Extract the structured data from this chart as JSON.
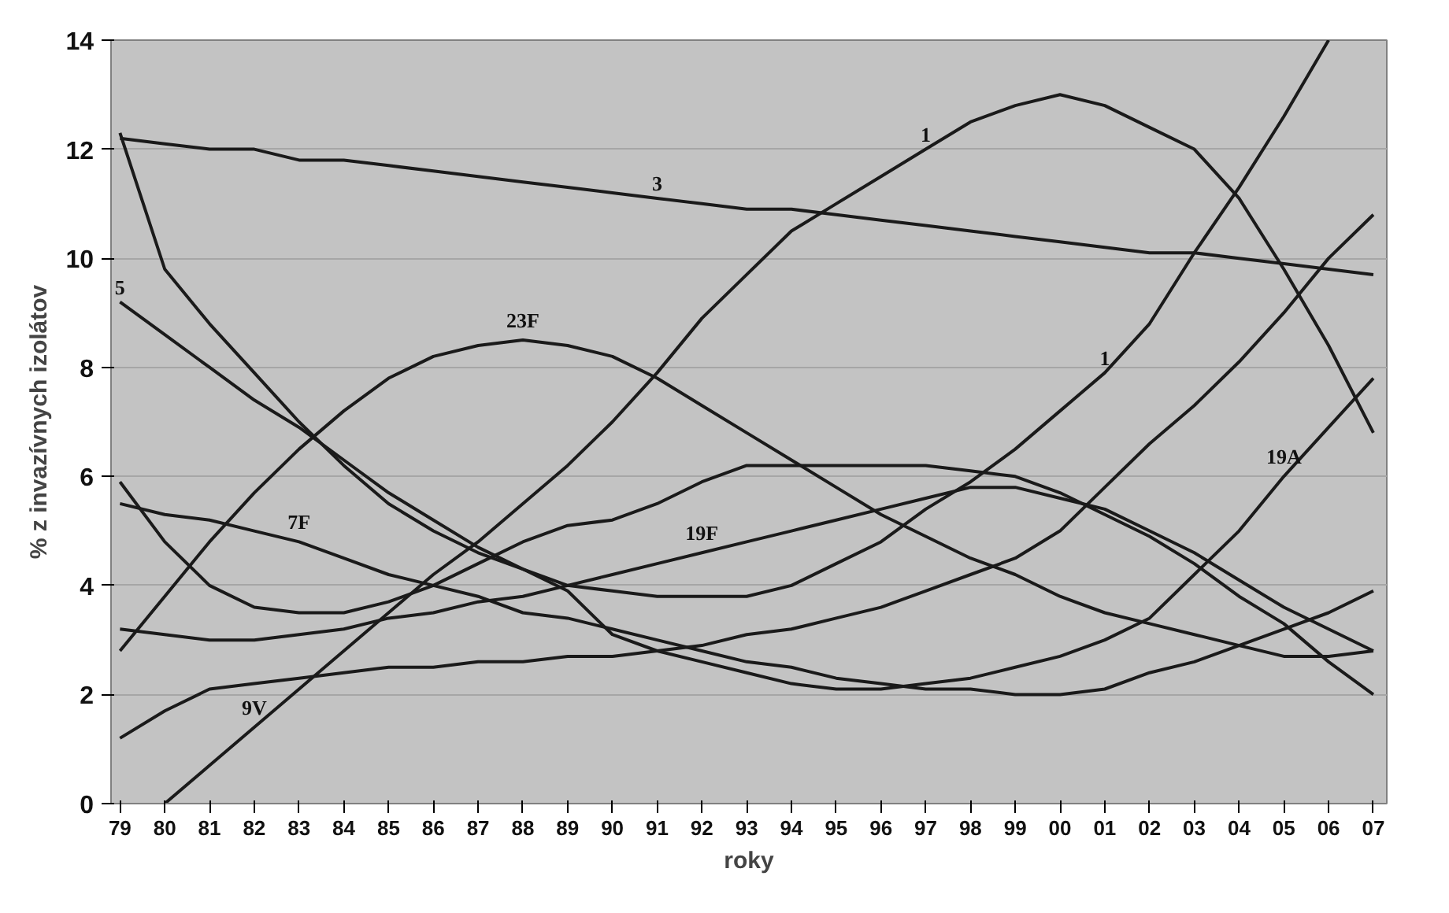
{
  "chart_data": {
    "type": "line",
    "xlabel": "roky",
    "ylabel": "% z invazívnych izolátov",
    "x": [
      1979,
      1980,
      1981,
      1982,
      1983,
      1984,
      1985,
      1986,
      1987,
      1988,
      1989,
      1990,
      1991,
      1992,
      1993,
      1994,
      1995,
      1996,
      1997,
      1998,
      1999,
      2000,
      2001,
      2002,
      2003,
      2004,
      2005,
      2006,
      2007
    ],
    "series": [
      {
        "color": "#1a1a1a",
        "values": [
          12.2,
          12.1,
          12.0,
          12.0,
          11.8,
          11.8,
          11.7,
          11.6,
          11.5,
          11.4,
          11.3,
          11.2,
          11.1,
          11.0,
          10.9,
          10.9,
          10.8,
          10.7,
          10.6,
          10.5,
          10.4,
          10.3,
          10.2,
          10.1,
          10.1,
          10.0,
          9.9,
          9.8,
          9.7
        ]
      },
      {
        "color": "#1a1a1a",
        "values": [
          null,
          0,
          0.7,
          1.4,
          2.1,
          2.8,
          3.5,
          4.2,
          4.8,
          5.5,
          6.2,
          7.0,
          7.9,
          8.9,
          9.7,
          10.5,
          11.0,
          11.5,
          12.0,
          12.5,
          12.8,
          13.0,
          12.8,
          12.4,
          12.0,
          11.1,
          9.8,
          8.4,
          6.8
        ]
      },
      {
        "color": "#1a1a1a",
        "values": [
          2.8,
          3.8,
          4.8,
          5.7,
          6.5,
          7.2,
          7.8,
          8.2,
          8.4,
          8.5,
          8.4,
          8.2,
          7.8,
          7.3,
          6.8,
          6.3,
          5.8,
          5.3,
          4.9,
          4.5,
          4.2,
          3.8,
          3.5,
          3.3,
          3.1,
          2.9,
          2.7,
          2.7,
          2.8
        ]
      },
      {
        "color": "#1a1a1a",
        "values": [
          12.3,
          9.8,
          8.8,
          7.9,
          7.0,
          6.2,
          5.5,
          5.0,
          4.6,
          4.3,
          4.0,
          3.9,
          3.8,
          3.8,
          3.8,
          4.0,
          4.4,
          4.8,
          5.4,
          5.9,
          6.5,
          7.2,
          7.9,
          8.8,
          10.1,
          11.3,
          12.6,
          14.0,
          null
        ]
      },
      {
        "color": "#1a1a1a",
        "values": [
          9.2,
          8.6,
          8.0,
          7.4,
          6.9,
          6.3,
          5.7,
          5.2,
          4.7,
          4.3,
          3.9,
          3.1,
          2.8,
          2.6,
          2.4,
          2.2,
          2.1,
          2.1,
          2.2,
          2.3,
          2.5,
          2.7,
          3.0,
          3.4,
          4.2,
          5.0,
          6.0,
          6.9,
          7.8
        ]
      },
      {
        "color": "#1a1a1a",
        "values": [
          5.9,
          4.8,
          4.0,
          3.6,
          3.5,
          3.5,
          3.7,
          4.0,
          4.4,
          4.8,
          5.1,
          5.2,
          5.5,
          5.9,
          6.2,
          6.2,
          6.2,
          6.2,
          6.2,
          6.1,
          6.0,
          5.7,
          5.3,
          4.9,
          4.4,
          3.8,
          3.3,
          2.6,
          2.0
        ]
      },
      {
        "color": "#1a1a1a",
        "values": [
          5.5,
          5.3,
          5.2,
          5.0,
          4.8,
          4.5,
          4.2,
          4.0,
          3.8,
          3.5,
          3.4,
          3.2,
          3.0,
          2.8,
          2.6,
          2.5,
          2.3,
          2.2,
          2.1,
          2.1,
          2.0,
          2.0,
          2.1,
          2.4,
          2.6,
          2.9,
          3.2,
          3.5,
          3.9
        ]
      },
      {
        "color": "#1a1a1a",
        "values": [
          1.2,
          1.7,
          2.1,
          2.2,
          2.3,
          2.4,
          2.5,
          2.5,
          2.6,
          2.6,
          2.7,
          2.7,
          2.8,
          2.9,
          3.1,
          3.2,
          3.4,
          3.6,
          3.9,
          4.2,
          4.5,
          5.0,
          5.8,
          6.6,
          7.3,
          8.1,
          9.0,
          10.0,
          10.8
        ]
      },
      {
        "color": "#1a1a1a",
        "values": [
          3.2,
          3.1,
          3.0,
          3.0,
          3.1,
          3.2,
          3.4,
          3.5,
          3.7,
          3.8,
          4.0,
          4.2,
          4.4,
          4.6,
          4.8,
          5.0,
          5.2,
          5.4,
          5.6,
          5.8,
          5.8,
          5.6,
          5.4,
          5.0,
          4.6,
          4.1,
          3.6,
          3.2,
          2.8
        ]
      }
    ],
    "annotations": [
      {
        "text": "1",
        "x": 1997,
        "y": 12.0
      },
      {
        "text": "3",
        "x": 1991,
        "y": 11.1
      },
      {
        "text": "5",
        "x": 1979,
        "y": 9.2
      },
      {
        "text": "23F",
        "x": 1988,
        "y": 8.5
      },
      {
        "text": "7F",
        "x": 1983,
        "y": 4.8
      },
      {
        "text": "19F",
        "x": 1992,
        "y": 4.6
      },
      {
        "text": "9V",
        "x": 1982,
        "y": 1.4
      },
      {
        "text": "1",
        "x": 2001,
        "y": 7.9
      },
      {
        "text": "19A",
        "x": 2005,
        "y": 6.0
      }
    ],
    "xlim": [
      1978.8,
      2007.3
    ],
    "xticks": [
      {
        "value": 1979,
        "label": "79"
      },
      {
        "value": 1980,
        "label": "80"
      },
      {
        "value": 1981,
        "label": "81"
      },
      {
        "value": 1982,
        "label": "82"
      },
      {
        "value": 1983,
        "label": "83"
      },
      {
        "value": 1984,
        "label": "84"
      },
      {
        "value": 1985,
        "label": "85"
      },
      {
        "value": 1986,
        "label": "86"
      },
      {
        "value": 1987,
        "label": "87"
      },
      {
        "value": 1988,
        "label": "88"
      },
      {
        "value": 1989,
        "label": "89"
      },
      {
        "value": 1990,
        "label": "90"
      },
      {
        "value": 1991,
        "label": "91"
      },
      {
        "value": 1992,
        "label": "92"
      },
      {
        "value": 1993,
        "label": "93"
      },
      {
        "value": 1994,
        "label": "94"
      },
      {
        "value": 1995,
        "label": "95"
      },
      {
        "value": 1996,
        "label": "96"
      },
      {
        "value": 1997,
        "label": "97"
      },
      {
        "value": 1998,
        "label": "98"
      },
      {
        "value": 1999,
        "label": "99"
      },
      {
        "value": 2000,
        "label": "00"
      },
      {
        "value": 2001,
        "label": "01"
      },
      {
        "value": 2002,
        "label": "02"
      },
      {
        "value": 2003,
        "label": "03"
      },
      {
        "value": 2004,
        "label": "04"
      },
      {
        "value": 2005,
        "label": "05"
      },
      {
        "value": 2006,
        "label": "06"
      },
      {
        "value": 2007,
        "label": "07"
      }
    ],
    "ylim": [
      0,
      14
    ],
    "yticks": [
      0,
      2,
      4,
      6,
      8,
      10,
      12,
      14
    ],
    "grid": "y",
    "marker": "none",
    "line_style": "solid"
  }
}
